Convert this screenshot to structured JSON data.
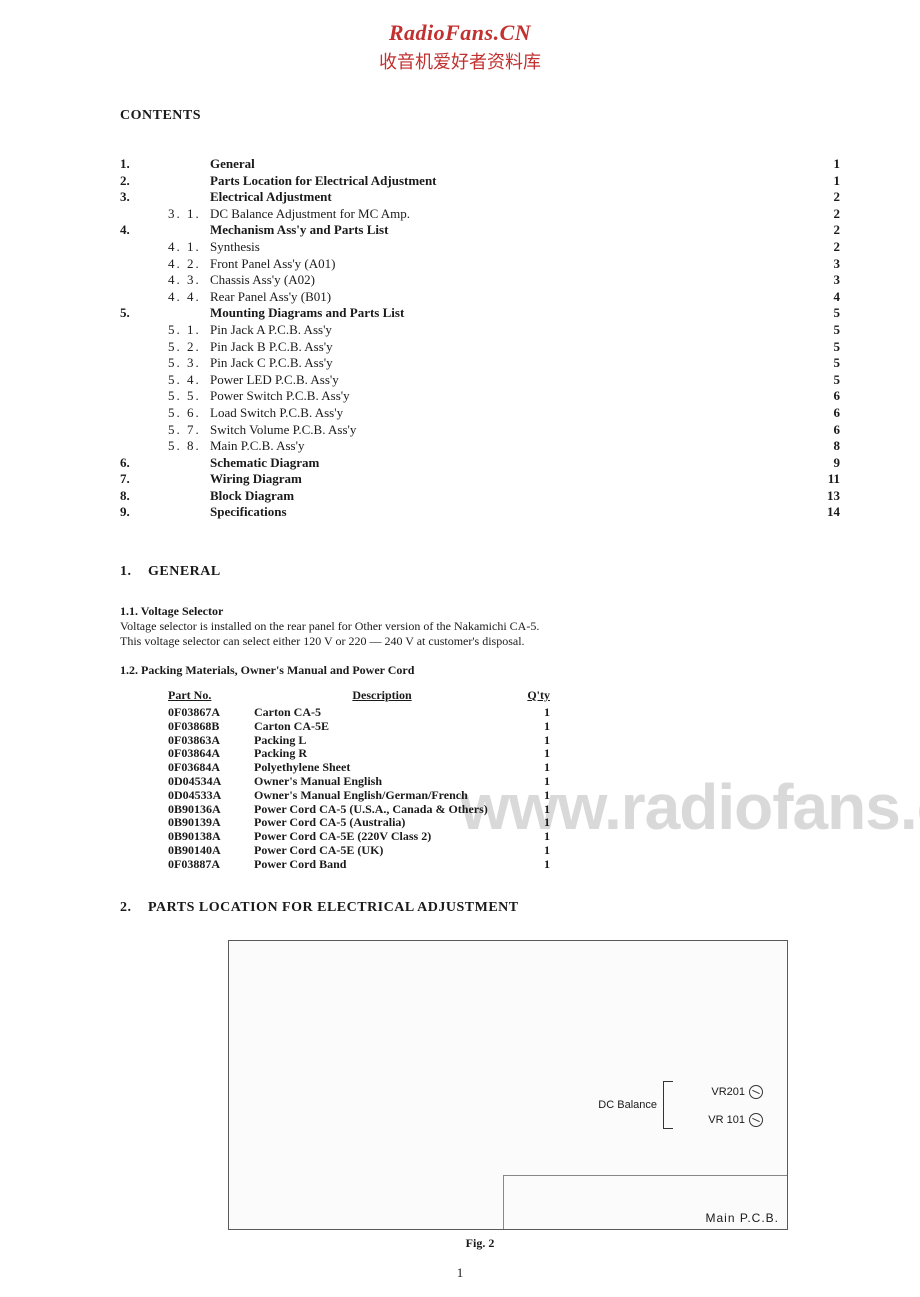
{
  "watermark": {
    "title": "RadioFans.CN",
    "subtitle": "收音机爱好者资料库",
    "big": "www.radiofans.c"
  },
  "contents_heading": "CONTENTS",
  "toc": [
    {
      "num": "1.",
      "sub": "",
      "title": "General",
      "page": "1",
      "bold": true
    },
    {
      "num": "2.",
      "sub": "",
      "title": "Parts Location for Electrical Adjustment",
      "page": "1",
      "bold": true
    },
    {
      "num": "3.",
      "sub": "",
      "title": "Electrical Adjustment",
      "page": "2",
      "bold": true
    },
    {
      "num": "",
      "sub": "3. 1.",
      "title": "DC Balance Adjustment for MC Amp.",
      "page": "2",
      "bold": false
    },
    {
      "num": "4.",
      "sub": "",
      "title": "Mechanism Ass'y and Parts List",
      "page": "2",
      "bold": true
    },
    {
      "num": "",
      "sub": "4. 1.",
      "title": "Synthesis",
      "page": "2",
      "bold": false
    },
    {
      "num": "",
      "sub": "4. 2.",
      "title": "Front Panel Ass'y (A01)",
      "page": "3",
      "bold": false
    },
    {
      "num": "",
      "sub": "4. 3.",
      "title": "Chassis Ass'y (A02)",
      "page": "3",
      "bold": false
    },
    {
      "num": "",
      "sub": "4. 4.",
      "title": "Rear Panel Ass'y (B01)",
      "page": "4",
      "bold": false
    },
    {
      "num": "5.",
      "sub": "",
      "title": "Mounting Diagrams and Parts List",
      "page": "5",
      "bold": true
    },
    {
      "num": "",
      "sub": "5. 1.",
      "title": "Pin Jack A P.C.B. Ass'y",
      "page": "5",
      "bold": false
    },
    {
      "num": "",
      "sub": "5. 2.",
      "title": "Pin Jack B P.C.B. Ass'y",
      "page": "5",
      "bold": false
    },
    {
      "num": "",
      "sub": "5. 3.",
      "title": "Pin Jack C P.C.B. Ass'y",
      "page": "5",
      "bold": false
    },
    {
      "num": "",
      "sub": "5. 4.",
      "title": "Power LED P.C.B. Ass'y",
      "page": "5",
      "bold": false
    },
    {
      "num": "",
      "sub": "5. 5.",
      "title": "Power Switch P.C.B. Ass'y",
      "page": "6",
      "bold": false
    },
    {
      "num": "",
      "sub": "5. 6.",
      "title": "Load Switch P.C.B. Ass'y",
      "page": "6",
      "bold": false
    },
    {
      "num": "",
      "sub": "5. 7.",
      "title": "Switch Volume P.C.B. Ass'y",
      "page": "6",
      "bold": false
    },
    {
      "num": "",
      "sub": "5. 8.",
      "title": "Main P.C.B. Ass'y",
      "page": "8",
      "bold": false
    },
    {
      "num": "6.",
      "sub": "",
      "title": "Schematic Diagram",
      "page": "9",
      "bold": true
    },
    {
      "num": "7.",
      "sub": "",
      "title": "Wiring Diagram",
      "page": "11",
      "bold": true
    },
    {
      "num": "8.",
      "sub": "",
      "title": "Block Diagram",
      "page": "13",
      "bold": true
    },
    {
      "num": "9.",
      "sub": "",
      "title": "Specifications",
      "page": "14",
      "bold": true
    }
  ],
  "section1": {
    "heading_num": "1.",
    "heading": "GENERAL",
    "sub11_title": "1.1. Voltage Selector",
    "sub11_body1": "Voltage selector is installed on the rear panel for Other version of the Nakamichi CA-5.",
    "sub11_body2": "This voltage selector can select either 120 V or 220 — 240 V at customer's disposal.",
    "sub12_title": "1.2. Packing Materials, Owner's Manual and Power Cord",
    "table": {
      "headers": {
        "part": "Part No.",
        "desc": "Description",
        "qty": "Q'ty"
      },
      "rows": [
        {
          "part": "0F03867A",
          "desc": "Carton CA-5",
          "qty": "1"
        },
        {
          "part": "0F03868B",
          "desc": "Carton CA-5E",
          "qty": "1"
        },
        {
          "part": "0F03863A",
          "desc": "Packing L",
          "qty": "1"
        },
        {
          "part": "0F03864A",
          "desc": "Packing R",
          "qty": "1"
        },
        {
          "part": "0F03684A",
          "desc": "Polyethylene Sheet",
          "qty": "1"
        },
        {
          "part": "0D04534A",
          "desc": "Owner's Manual English",
          "qty": "1"
        },
        {
          "part": "0D04533A",
          "desc": "Owner's Manual English/German/French",
          "qty": "1"
        },
        {
          "part": "0B90136A",
          "desc": "Power Cord CA-5 (U.S.A., Canada & Others)",
          "qty": "1"
        },
        {
          "part": "0B90139A",
          "desc": "Power Cord CA-5 (Australia)",
          "qty": "1"
        },
        {
          "part": "0B90138A",
          "desc": "Power Cord CA-5E (220V Class 2)",
          "qty": "1"
        },
        {
          "part": "0B90140A",
          "desc": "Power Cord CA-5E (UK)",
          "qty": "1"
        },
        {
          "part": "0F03887A",
          "desc": "Power Cord Band",
          "qty": "1"
        }
      ]
    }
  },
  "section2": {
    "heading_num": "2.",
    "heading": "PARTS LOCATION FOR ELECTRICAL ADJUSTMENT",
    "fig": {
      "vr201": "VR201",
      "vr101": "VR 101",
      "dc_balance": "DC Balance",
      "main_pcb": "Main P.C.B.",
      "caption": "Fig. 2"
    }
  },
  "page_number": "1",
  "colors": {
    "text": "#1a1a1a",
    "accent": "#c23030",
    "watermark_grey": "#d9d9d9",
    "border": "#5a5a5a",
    "background": "#ffffff"
  }
}
